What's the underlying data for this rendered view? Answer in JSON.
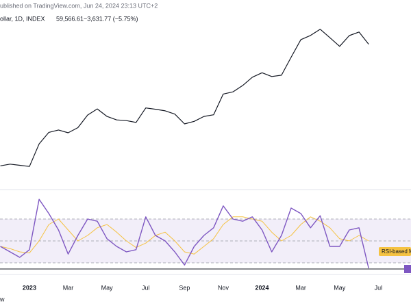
{
  "footer": "w",
  "chart_data": [
    {
      "type": "line",
      "header_line1": "ublished on TradingView.com, Jun 24, 2024 23:13 UTC+2",
      "header_symbol": "ollar, 1D, INDEX",
      "header_price": "59,566.61",
      "header_change": "−3,631.77 (−5.75%)",
      "categories": [
        null,
        null,
        null,
        "2023",
        null,
        null,
        null,
        "Mar",
        null,
        null,
        null,
        "May",
        null,
        null,
        null,
        "Jul",
        null,
        null,
        null,
        "Sep",
        null,
        null,
        null,
        "Nov",
        null,
        null,
        null,
        "2024",
        null,
        null,
        null,
        "Mar",
        null,
        null,
        null,
        "May",
        null,
        null,
        null,
        "Jul"
      ],
      "values": [
        16700,
        17000,
        16800,
        16600,
        21000,
        23700,
        24300,
        23600,
        24900,
        28400,
        30300,
        28000,
        27000,
        26800,
        26300,
        30600,
        30200,
        29700,
        28700,
        25900,
        26600,
        28000,
        28500,
        35400,
        36200,
        38700,
        42200,
        44200,
        42500,
        43100,
        52000,
        62500,
        65300,
        69700,
        63800,
        58300,
        65200,
        67700,
        59600,
        null
      ],
      "color": "#131722",
      "log_scale": true,
      "ylim": [
        13700,
        82000
      ]
    },
    {
      "type": "line",
      "series": [
        {
          "color": "#7e57c2",
          "values": [
            45,
            40,
            35,
            42,
            88,
            75,
            60,
            38,
            55,
            70,
            68,
            52,
            45,
            40,
            42,
            72,
            55,
            50,
            40,
            28,
            45,
            55,
            62,
            82,
            70,
            68,
            72,
            60,
            40,
            55,
            80,
            75,
            62,
            73,
            45,
            45,
            60,
            62,
            25,
            null
          ]
        },
        {
          "name": "RSI-based M",
          "color": "#f5c242",
          "values": [
            45,
            43,
            40,
            39,
            50,
            65,
            70,
            60,
            50,
            55,
            62,
            65,
            58,
            50,
            44,
            48,
            55,
            58,
            50,
            40,
            38,
            45,
            52,
            65,
            72,
            72,
            70,
            68,
            58,
            50,
            55,
            65,
            72,
            68,
            62,
            52,
            50,
            55,
            50,
            null
          ]
        }
      ],
      "levels": [
        30,
        50,
        70
      ],
      "ylim": [
        20,
        95
      ]
    }
  ]
}
